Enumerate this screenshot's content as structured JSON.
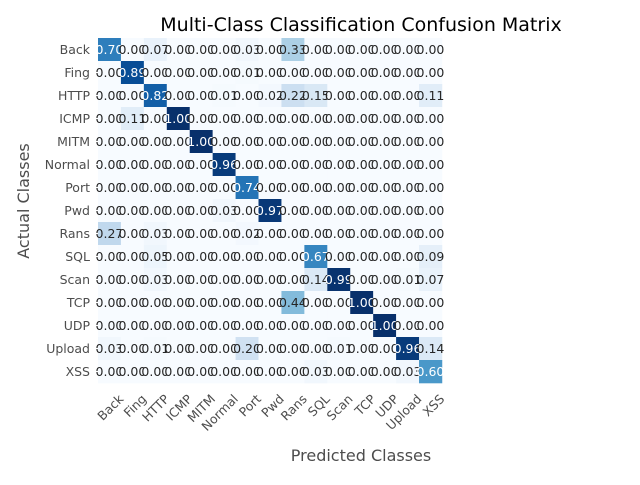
{
  "chart_data": {
    "type": "heatmap",
    "title": "Multi-Class Classification Confusion Matrix",
    "xlabel": "Predicted Classes",
    "ylabel": "Actual Classes",
    "x_categories": [
      "Back",
      "Fing",
      "HTTP",
      "ICMP",
      "MITM",
      "Normal",
      "Port",
      "Pwd",
      "Rans",
      "SQL",
      "Scan",
      "TCP",
      "UDP",
      "Upload",
      "XSS"
    ],
    "y_categories": [
      "Back",
      "Fing",
      "HTTP",
      "ICMP",
      "MITM",
      "Normal",
      "Port",
      "Pwd",
      "Rans",
      "SQL",
      "Scan",
      "TCP",
      "UDP",
      "Upload",
      "XSS"
    ],
    "values": [
      [
        0.7,
        0.0,
        0.07,
        0.0,
        0.0,
        0.0,
        0.03,
        0.0,
        0.33,
        0.0,
        0.0,
        0.0,
        0.0,
        0.0,
        0.0
      ],
      [
        0.0,
        0.89,
        0.0,
        0.0,
        0.0,
        0.0,
        0.01,
        0.0,
        0.0,
        0.0,
        0.0,
        0.0,
        0.0,
        0.0,
        0.0
      ],
      [
        0.0,
        0.0,
        0.82,
        0.0,
        0.0,
        0.01,
        0.0,
        0.02,
        0.22,
        0.15,
        0.0,
        0.0,
        0.0,
        0.0,
        0.11
      ],
      [
        0.0,
        0.11,
        0.0,
        1.0,
        0.0,
        0.0,
        0.0,
        0.0,
        0.0,
        0.0,
        0.0,
        0.0,
        0.0,
        0.0,
        0.0
      ],
      [
        0.0,
        0.0,
        0.0,
        0.0,
        1.0,
        0.0,
        0.0,
        0.0,
        0.0,
        0.0,
        0.0,
        0.0,
        0.0,
        0.0,
        0.0
      ],
      [
        0.0,
        0.0,
        0.0,
        0.0,
        0.0,
        0.96,
        0.0,
        0.0,
        0.0,
        0.0,
        0.0,
        0.0,
        0.0,
        0.0,
        0.0
      ],
      [
        0.0,
        0.0,
        0.0,
        0.0,
        0.0,
        0.0,
        0.74,
        0.0,
        0.0,
        0.0,
        0.0,
        0.0,
        0.0,
        0.0,
        0.0
      ],
      [
        0.0,
        0.0,
        0.0,
        0.0,
        0.0,
        0.03,
        0.0,
        0.97,
        0.0,
        0.0,
        0.0,
        0.0,
        0.0,
        0.0,
        0.0
      ],
      [
        0.27,
        0.0,
        0.03,
        0.0,
        0.0,
        0.0,
        0.02,
        0.0,
        0.0,
        0.0,
        0.0,
        0.0,
        0.0,
        0.0,
        0.0
      ],
      [
        0.0,
        0.0,
        0.05,
        0.0,
        0.0,
        0.0,
        0.0,
        0.0,
        0.0,
        0.67,
        0.0,
        0.0,
        0.0,
        0.0,
        0.09
      ],
      [
        0.0,
        0.0,
        0.03,
        0.0,
        0.0,
        0.0,
        0.0,
        0.0,
        0.0,
        0.14,
        0.99,
        0.0,
        0.0,
        0.01,
        0.07
      ],
      [
        0.0,
        0.0,
        0.0,
        0.0,
        0.0,
        0.0,
        0.0,
        0.0,
        0.44,
        0.0,
        0.0,
        1.0,
        0.0,
        0.0,
        0.0
      ],
      [
        0.0,
        0.0,
        0.0,
        0.0,
        0.0,
        0.0,
        0.0,
        0.0,
        0.0,
        0.0,
        0.0,
        0.0,
        1.0,
        0.0,
        0.0
      ],
      [
        0.03,
        0.0,
        0.01,
        0.0,
        0.0,
        0.0,
        0.2,
        0.0,
        0.0,
        0.0,
        0.01,
        0.0,
        0.0,
        0.96,
        0.14
      ],
      [
        0.0,
        0.0,
        0.0,
        0.0,
        0.0,
        0.0,
        0.0,
        0.0,
        0.0,
        0.03,
        0.0,
        0.0,
        0.0,
        0.03,
        0.6
      ]
    ],
    "value_format": "2 decimals",
    "colormap": "Blues",
    "vmin": 0,
    "vmax": 1,
    "annotated": true,
    "colorbar": false,
    "x_tick_rotation": 45
  }
}
